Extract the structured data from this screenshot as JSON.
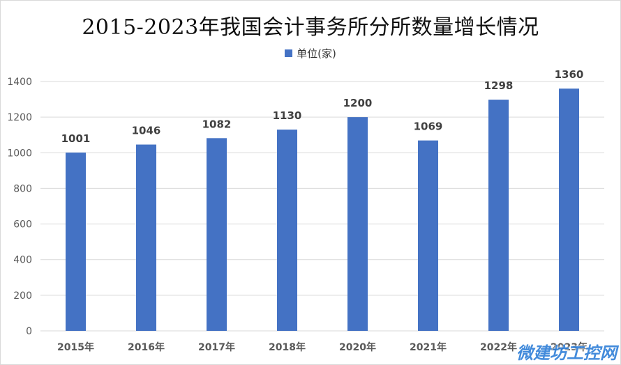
{
  "chart_data": {
    "type": "bar",
    "title": "2015-2023年我国会计事务所分所数量增长情况",
    "categories": [
      "2015年",
      "2016年",
      "2017年",
      "2018年",
      "2020年",
      "2021年",
      "2022年",
      "2023年"
    ],
    "series": [
      {
        "name": "单位(家)",
        "values": [
          1001,
          1046,
          1082,
          1130,
          1200,
          1069,
          1298,
          1360
        ]
      }
    ],
    "ylim": [
      0,
      1400
    ],
    "yticks": [
      0,
      200,
      400,
      600,
      800,
      1000,
      1200,
      1400
    ],
    "grid": true,
    "legend": "top-center",
    "data_labels": true
  },
  "colors": {
    "bar": "#4472c4",
    "grid": "#d9d9d9",
    "axis_text": "#595959",
    "label_text": "#404040"
  },
  "watermark": "微建坊工控网"
}
